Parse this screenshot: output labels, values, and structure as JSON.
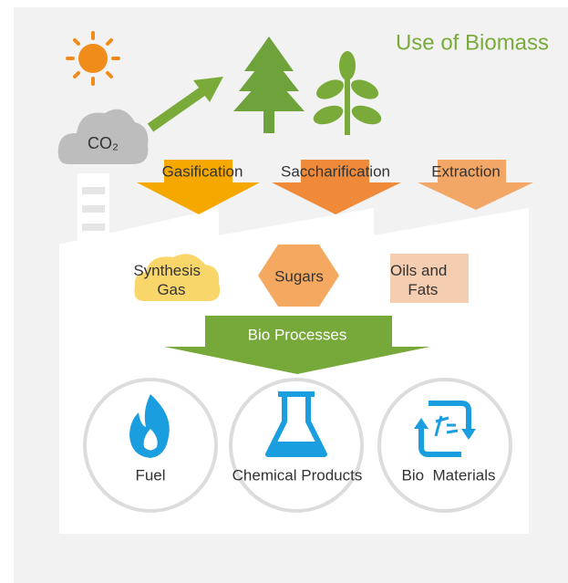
{
  "title": "Use of Biomass",
  "co2": "CO₂",
  "steps": [
    "Gasification",
    "Saccharification",
    "Extraction"
  ],
  "intermediates": [
    [
      "Synthesis",
      "Gas"
    ],
    [
      "Sugars"
    ],
    [
      "Oils and",
      "Fats"
    ]
  ],
  "process": "Bio Processes",
  "products": [
    "Fuel",
    "Chemical Products",
    "Bio  Materials"
  ]
}
